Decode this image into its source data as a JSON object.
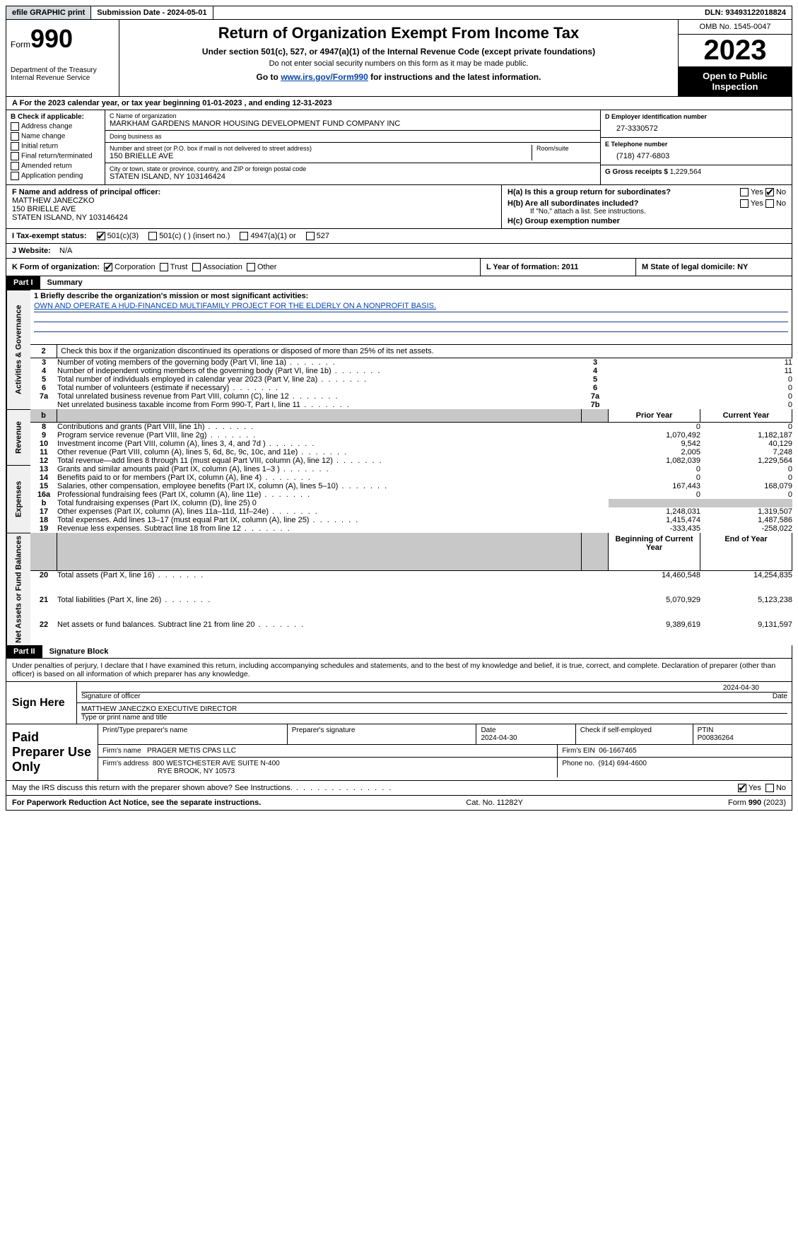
{
  "colors": {
    "link": "#0645ad",
    "headerBg": "#000000",
    "headerFg": "#ffffff",
    "shade": "#c8c8c8",
    "topbarGrey": "#d6dbe0",
    "missionLine": "#1a3a8a"
  },
  "topbar": {
    "efile": "efile GRAPHIC print",
    "submission": "Submission Date - 2024-05-01",
    "dln": "DLN: 93493122018824"
  },
  "header": {
    "formLabel": "Form",
    "formNum": "990",
    "dept": "Department of the Treasury\nInternal Revenue Service",
    "title": "Return of Organization Exempt From Income Tax",
    "subtitle": "Under section 501(c), 527, or 4947(a)(1) of the Internal Revenue Code (except private foundations)",
    "note1": "Do not enter social security numbers on this form as it may be made public.",
    "gotoPrefix": "Go to ",
    "gotoLink": "www.irs.gov/Form990",
    "gotoSuffix": " for instructions and the latest information.",
    "omb": "OMB No. 1545-0047",
    "year": "2023",
    "open": "Open to Public Inspection"
  },
  "rowA": "For the 2023 calendar year, or tax year beginning 01-01-2023   , and ending 12-31-2023",
  "boxB": {
    "label": "B Check if applicable:",
    "items": [
      "Address change",
      "Name change",
      "Initial return",
      "Final return/terminated",
      "Amended return",
      "Application pending"
    ]
  },
  "boxC": {
    "nameLabel": "C Name of organization",
    "name": "MARKHAM GARDENS MANOR HOUSING DEVELOPMENT FUND COMPANY INC",
    "dbaLabel": "Doing business as",
    "dba": "",
    "streetLabel": "Number and street (or P.O. box if mail is not delivered to street address)",
    "roomLabel": "Room/suite",
    "street": "150 BRIELLE AVE",
    "cityLabel": "City or town, state or province, country, and ZIP or foreign postal code",
    "city": "STATEN ISLAND, NY  103146424"
  },
  "boxD": {
    "label": "D Employer identification number",
    "ein": "27-3330572"
  },
  "boxE": {
    "label": "E Telephone number",
    "phone": "(718) 477-6803"
  },
  "boxG": {
    "label": "G Gross receipts $",
    "amount": "1,229,564"
  },
  "boxF": {
    "label": "F  Name and address of principal officer:",
    "name": "MATTHEW JANECZKO",
    "street": "150 BRIELLE AVE",
    "city": "STATEN ISLAND, NY  103146424"
  },
  "boxH": {
    "a": "H(a)  Is this a group return for subordinates?",
    "aYes": false,
    "aNo": true,
    "b": "H(b)  Are all subordinates included?",
    "bNote": "If \"No,\" attach a list. See instructions.",
    "c": "H(c)  Group exemption number",
    "cVal": ""
  },
  "taxStatus": {
    "label": "I    Tax-exempt status:",
    "c3": true,
    "opts": [
      "501(c)(3)",
      "501(c) (  ) (insert no.)",
      "4947(a)(1) or",
      "527"
    ]
  },
  "website": {
    "label": "J    Website:",
    "val": "N/A"
  },
  "rowK": {
    "label": "K Form of organization:",
    "corp": true,
    "opts": [
      "Corporation",
      "Trust",
      "Association",
      "Other"
    ],
    "l": "L Year of formation: 2011",
    "m": "M State of legal domicile: NY"
  },
  "part1": {
    "hdr": "Part I",
    "title": "Summary",
    "missionLabel": "1   Briefly describe the organization's mission or most significant activities:",
    "mission": "OWN AND OPERATE A HUD-FINANCED MULTIFAMILY PROJECT FOR THE ELDERLY ON A NONPROFIT BASIS.",
    "line2": "Check this box      if the organization discontinued its operations or disposed of more than 25% of its net assets.",
    "col_prior": "Prior Year",
    "col_current": "Current Year",
    "col_begin": "Beginning of Current Year",
    "col_end": "End of Year",
    "tab_gov": "Activities & Governance",
    "tab_rev": "Revenue",
    "tab_exp": "Expenses",
    "tab_net": "Net Assets or Fund Balances",
    "rows_gov": [
      {
        "n": "3",
        "t": "Number of voting members of the governing body (Part VI, line 1a)",
        "k": "3",
        "v": "11"
      },
      {
        "n": "4",
        "t": "Number of independent voting members of the governing body (Part VI, line 1b)",
        "k": "4",
        "v": "11"
      },
      {
        "n": "5",
        "t": "Total number of individuals employed in calendar year 2023 (Part V, line 2a)",
        "k": "5",
        "v": "0"
      },
      {
        "n": "6",
        "t": "Total number of volunteers (estimate if necessary)",
        "k": "6",
        "v": "0"
      },
      {
        "n": "7a",
        "t": "Total unrelated business revenue from Part VIII, column (C), line 12",
        "k": "7a",
        "v": "0"
      },
      {
        "n": "",
        "t": "Net unrelated business taxable income from Form 990-T, Part I, line 11",
        "k": "7b",
        "v": "0"
      }
    ],
    "rows_rev": [
      {
        "n": "8",
        "t": "Contributions and grants (Part VIII, line 1h)",
        "p": "0",
        "c": "0"
      },
      {
        "n": "9",
        "t": "Program service revenue (Part VIII, line 2g)",
        "p": "1,070,492",
        "c": "1,182,187"
      },
      {
        "n": "10",
        "t": "Investment income (Part VIII, column (A), lines 3, 4, and 7d )",
        "p": "9,542",
        "c": "40,129"
      },
      {
        "n": "11",
        "t": "Other revenue (Part VIII, column (A), lines 5, 6d, 8c, 9c, 10c, and 11e)",
        "p": "2,005",
        "c": "7,248"
      },
      {
        "n": "12",
        "t": "Total revenue—add lines 8 through 11 (must equal Part VIII, column (A), line 12)",
        "p": "1,082,039",
        "c": "1,229,564"
      }
    ],
    "rows_exp": [
      {
        "n": "13",
        "t": "Grants and similar amounts paid (Part IX, column (A), lines 1–3 )",
        "p": "0",
        "c": "0"
      },
      {
        "n": "14",
        "t": "Benefits paid to or for members (Part IX, column (A), line 4)",
        "p": "0",
        "c": "0"
      },
      {
        "n": "15",
        "t": "Salaries, other compensation, employee benefits (Part IX, column (A), lines 5–10)",
        "p": "167,443",
        "c": "168,079"
      },
      {
        "n": "16a",
        "t": "Professional fundraising fees (Part IX, column (A), line 11e)",
        "p": "0",
        "c": "0"
      },
      {
        "n": "b",
        "t": "Total fundraising expenses (Part IX, column (D), line 25) 0",
        "p": "",
        "c": "",
        "shade": true
      },
      {
        "n": "17",
        "t": "Other expenses (Part IX, column (A), lines 11a–11d, 11f–24e)",
        "p": "1,248,031",
        "c": "1,319,507"
      },
      {
        "n": "18",
        "t": "Total expenses. Add lines 13–17 (must equal Part IX, column (A), line 25)",
        "p": "1,415,474",
        "c": "1,487,586"
      },
      {
        "n": "19",
        "t": "Revenue less expenses. Subtract line 18 from line 12",
        "p": "-333,435",
        "c": "-258,022"
      }
    ],
    "rows_net": [
      {
        "n": "20",
        "t": "Total assets (Part X, line 16)",
        "p": "14,460,548",
        "c": "14,254,835"
      },
      {
        "n": "21",
        "t": "Total liabilities (Part X, line 26)",
        "p": "5,070,929",
        "c": "5,123,238"
      },
      {
        "n": "22",
        "t": "Net assets or fund balances. Subtract line 21 from line 20",
        "p": "9,389,619",
        "c": "9,131,597"
      }
    ]
  },
  "part2": {
    "hdr": "Part II",
    "title": "Signature Block",
    "decl": "Under penalties of perjury, I declare that I have examined this return, including accompanying schedules and statements, and to the best of my knowledge and belief, it is true, correct, and complete. Declaration of preparer (other than officer) is based on all information of which preparer has any knowledge.",
    "signHere": "Sign Here",
    "sigOfficer": "Signature of officer",
    "sigDate1": "2024-04-30",
    "officerName": "MATTHEW JANECZKO  EXECUTIVE DIRECTOR",
    "typeName": "Type or print name and title",
    "paid": "Paid Preparer Use Only",
    "prepName": "Print/Type preparer's name",
    "prepSig": "Preparer's signature",
    "dateLbl": "Date",
    "date2": "2024-04-30",
    "checkSelf": "Check       if self-employed",
    "ptinLbl": "PTIN",
    "ptin": "P00836264",
    "firmNameLbl": "Firm's name",
    "firmName": "PRAGER METIS CPAS LLC",
    "firmEinLbl": "Firm's EIN",
    "firmEin": "06-1667465",
    "firmAddrLbl": "Firm's address",
    "firmAddr1": "800 WESTCHESTER AVE SUITE N-400",
    "firmAddr2": "RYE BROOK, NY  10573",
    "phoneLbl": "Phone no.",
    "phone": "(914) 694-4600",
    "discuss": "May the IRS discuss this return with the preparer shown above? See Instructions.",
    "discussYes": true
  },
  "footer": {
    "left": "For Paperwork Reduction Act Notice, see the separate instructions.",
    "mid": "Cat. No. 11282Y",
    "right": "Form 990 (2023)"
  }
}
